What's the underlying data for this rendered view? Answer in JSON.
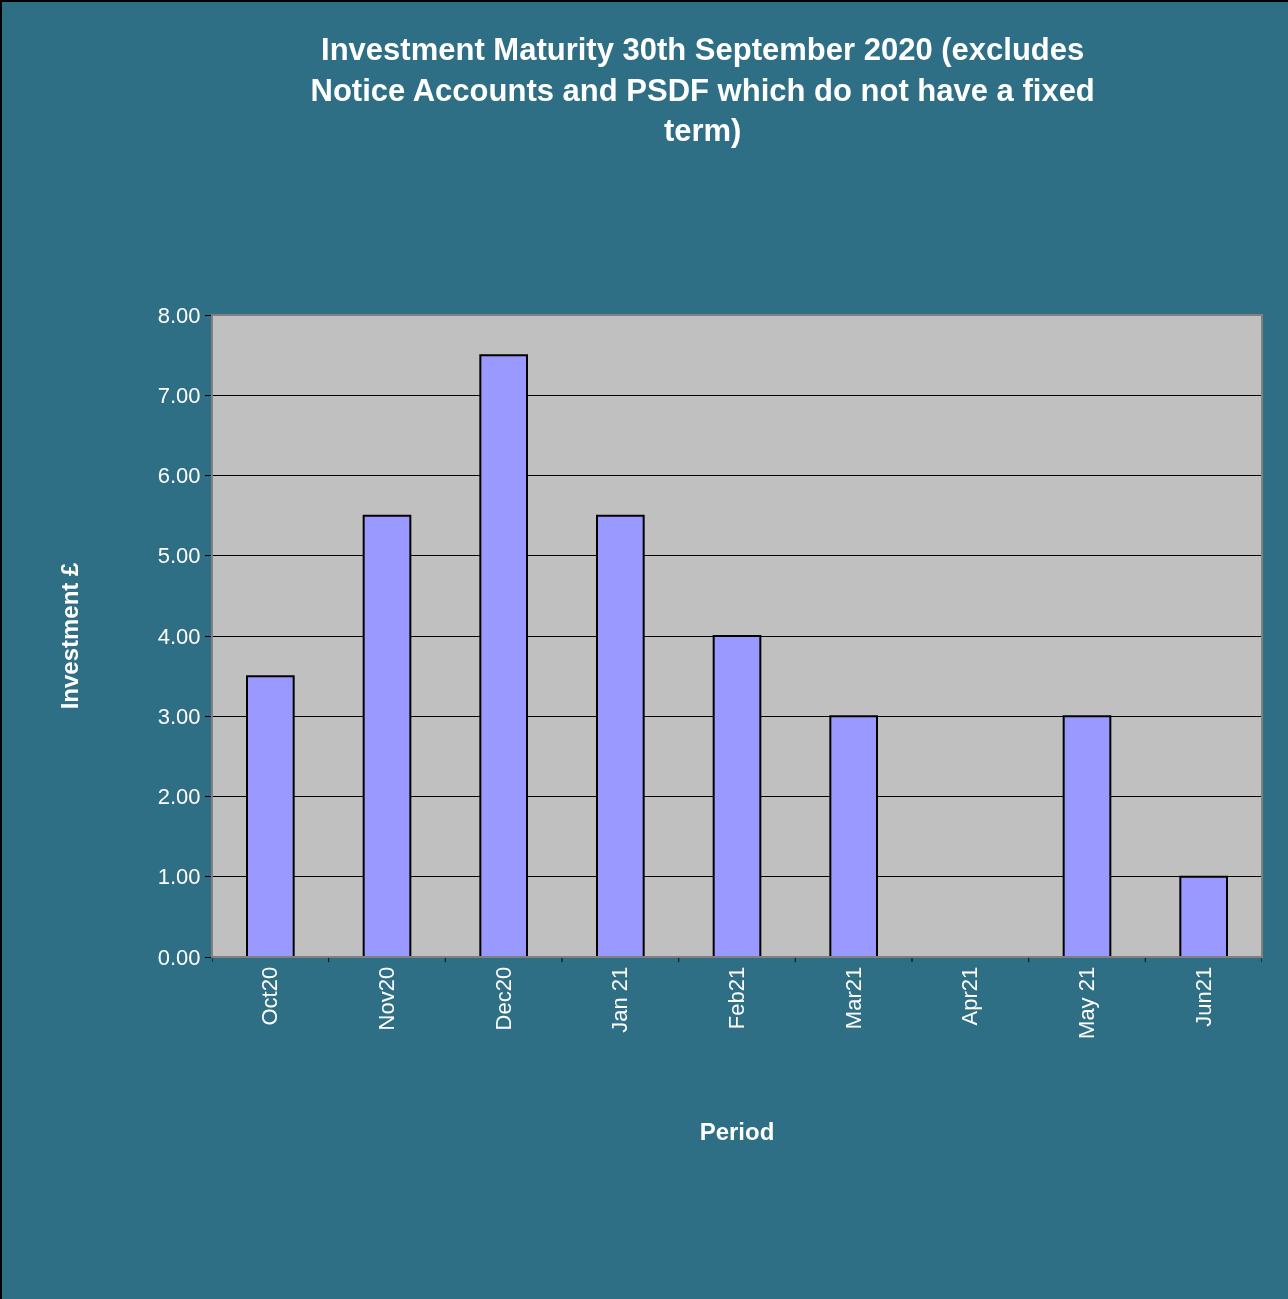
{
  "chart_data": {
    "type": "bar",
    "title": "Investment Maturity 30th September 2020 (excludes\nNotice Accounts and PSDF which do not have a fixed\nterm)",
    "xlabel": "Period",
    "ylabel": "Investment £",
    "categories": [
      "Oct20",
      "Nov20",
      "Dec20",
      "Jan 21",
      "Feb21",
      "Mar21",
      "Apr21",
      "May 21",
      "Jun21"
    ],
    "values": [
      3.5,
      5.5,
      7.5,
      5.5,
      4,
      3,
      0,
      3,
      1
    ],
    "color": "#9999ff",
    "ylim": [
      0,
      8
    ],
    "yticks": [
      {
        "value": 0,
        "label": "0.00"
      },
      {
        "value": 1,
        "label": "1.00"
      },
      {
        "value": 2,
        "label": "2.00"
      },
      {
        "value": 3,
        "label": "3.00"
      },
      {
        "value": 4,
        "label": "4.00"
      },
      {
        "value": 5,
        "label": "5.00"
      },
      {
        "value": 6,
        "label": "6.00"
      },
      {
        "value": 7,
        "label": "7.00"
      },
      {
        "value": 8,
        "label": "8.00"
      }
    ],
    "grid": "y"
  }
}
